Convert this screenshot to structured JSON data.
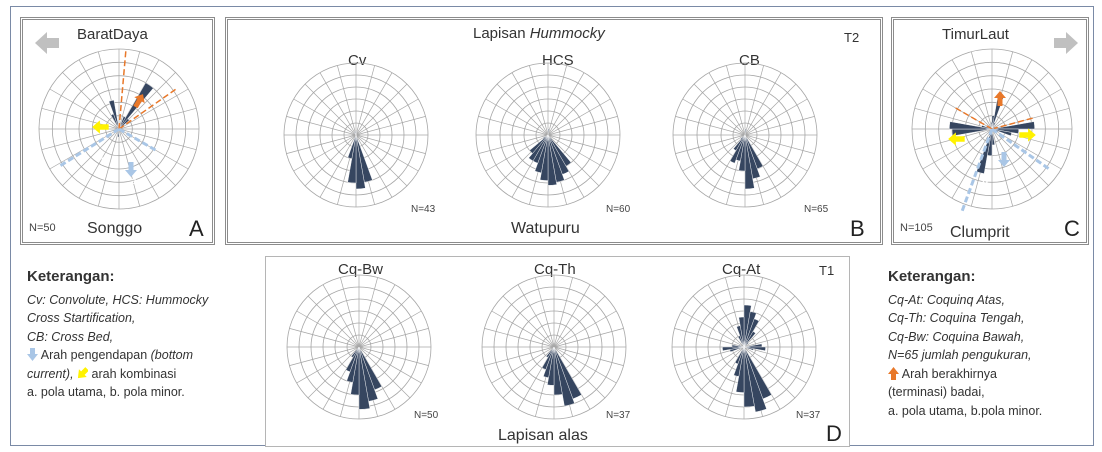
{
  "colors": {
    "petal": "#364660",
    "grid": "#a6a6a6",
    "blue": "#a9c6e6",
    "orange": "#e8782a",
    "yellow": "#fff200"
  },
  "panel_a": {
    "title": "BaratDaya",
    "place": "Songgo",
    "letter": "A",
    "n": "N=50",
    "arrow_icon": "arrow-left-icon",
    "label_a": "a",
    "label_b": "b"
  },
  "panel_b": {
    "title_prefix": "Lapisan ",
    "title_italic": "Hummocky",
    "tag": "T2",
    "place": "Watupuru",
    "letter": "B",
    "roses": [
      {
        "label": "Cv",
        "n": "N=43"
      },
      {
        "label": "HCS",
        "n": "N=60"
      },
      {
        "label": "CB",
        "n": "N=65"
      }
    ]
  },
  "panel_c": {
    "title": "TimurLaut",
    "place": "Clumprit",
    "letter": "C",
    "n": "N=105",
    "arrow_icon": "arrow-right-icon",
    "label_a": "a",
    "label_b": "b"
  },
  "panel_d": {
    "tag": "T1",
    "place": "Lapisan alas",
    "letter": "D",
    "roses": [
      {
        "label": "Cq-Bw",
        "n": "N=50"
      },
      {
        "label": "Cq-Th",
        "n": "N=37"
      },
      {
        "label": "Cq-At",
        "n": "N=37"
      }
    ]
  },
  "legend_left": {
    "heading": "Keterangan:",
    "line1": "Cv: Convolute,   HCS: Hummocky",
    "line2": "Cross Startification,",
    "line3": "CB: Cross Bed,",
    "line4a": "Arah pengendapan ",
    "line4b": "(bottom",
    "line5a": "current),",
    "line5b": "arah kombinasi",
    "line6": "a.     pola utama, b. pola minor."
  },
  "legend_right": {
    "heading": "Keterangan:",
    "line1": "Cq-At: Coquinq Atas,",
    "line2": "Cq-Th: Coquina Tengah,",
    "line3": "Cq-Bw: Coquina Bawah,",
    "line4": "N=65 jumlah pengukuran,",
    "line5": "Arah berakhirnya",
    "line6": "(terminasi) badai,",
    "line7": "a. pola utama, b.pola minor."
  },
  "rose_data": {
    "sectors": 36,
    "A": [
      0,
      0,
      1,
      4,
      1,
      0,
      0,
      0,
      0,
      0,
      0,
      0,
      0,
      0,
      0,
      0,
      0,
      0,
      0.6,
      0,
      0,
      0,
      0,
      0,
      0,
      0,
      0,
      0,
      0,
      0,
      0,
      0,
      0,
      1.2,
      2.2,
      0
    ],
    "C": [
      1,
      2.5,
      0.5,
      0.3,
      0,
      0,
      0,
      0,
      3.2,
      2,
      1.5,
      0.5,
      0.3,
      0,
      0,
      0,
      0,
      1.2,
      2,
      3.4,
      0.5,
      0,
      0,
      0,
      0,
      0,
      3,
      3.2,
      0.8,
      0.3,
      0,
      0,
      0,
      0,
      0.3,
      0.5
    ],
    "Cv": [
      0.3,
      0,
      0,
      0,
      0,
      0,
      0,
      0,
      0,
      0,
      0,
      0,
      0,
      0,
      0,
      0,
      4,
      4.5,
      4,
      2,
      0,
      0,
      0,
      0,
      0,
      0,
      0,
      0,
      0,
      0,
      0,
      0,
      0.3,
      0,
      0,
      0.3
    ],
    "HCS": [
      0.5,
      0,
      0,
      0,
      0,
      0,
      0,
      0,
      0,
      0,
      0,
      0,
      0,
      0,
      3,
      3.5,
      4,
      4.2,
      3.8,
      3.2,
      2.5,
      2.5,
      2,
      0.5,
      0,
      0,
      0,
      0,
      0,
      0,
      0,
      0,
      0,
      0,
      0,
      0
    ],
    "CB": [
      0.5,
      0,
      0,
      0,
      0,
      0,
      0,
      0,
      0,
      0,
      0,
      0,
      0,
      0,
      0,
      3,
      3.7,
      4.5,
      3,
      2.2,
      2.5,
      1.5,
      0.5,
      0,
      0,
      0,
      0,
      0,
      0,
      0,
      0,
      0,
      0,
      0,
      0,
      0
    ],
    "CqBw": [
      0,
      0,
      0,
      0,
      0,
      0,
      0,
      0,
      0,
      0,
      0,
      0,
      0,
      0,
      0,
      3.8,
      4.6,
      5.2,
      4,
      3,
      2.2,
      1,
      0,
      0,
      0,
      0,
      0,
      0,
      0,
      0,
      0,
      0,
      0,
      0,
      0,
      0
    ],
    "CqTh": [
      0,
      0,
      0,
      0,
      0,
      0,
      0,
      0,
      0,
      0,
      0,
      0,
      0,
      0,
      0,
      4.6,
      5,
      4,
      3.2,
      2.6,
      2,
      1,
      0,
      0,
      0,
      0,
      0,
      0,
      0,
      0,
      0,
      0,
      0,
      0,
      0,
      0
    ],
    "CqAt": [
      3.5,
      3,
      2.5,
      1.5,
      0.5,
      0,
      0,
      0,
      1.5,
      1.8,
      0.8,
      0,
      0,
      0,
      0,
      4.6,
      5.5,
      5,
      3.8,
      2.5,
      1.5,
      0,
      0,
      0,
      0,
      1.2,
      1.8,
      1,
      0.5,
      0,
      0,
      0,
      0,
      1,
      1.8,
      2.5
    ]
  }
}
